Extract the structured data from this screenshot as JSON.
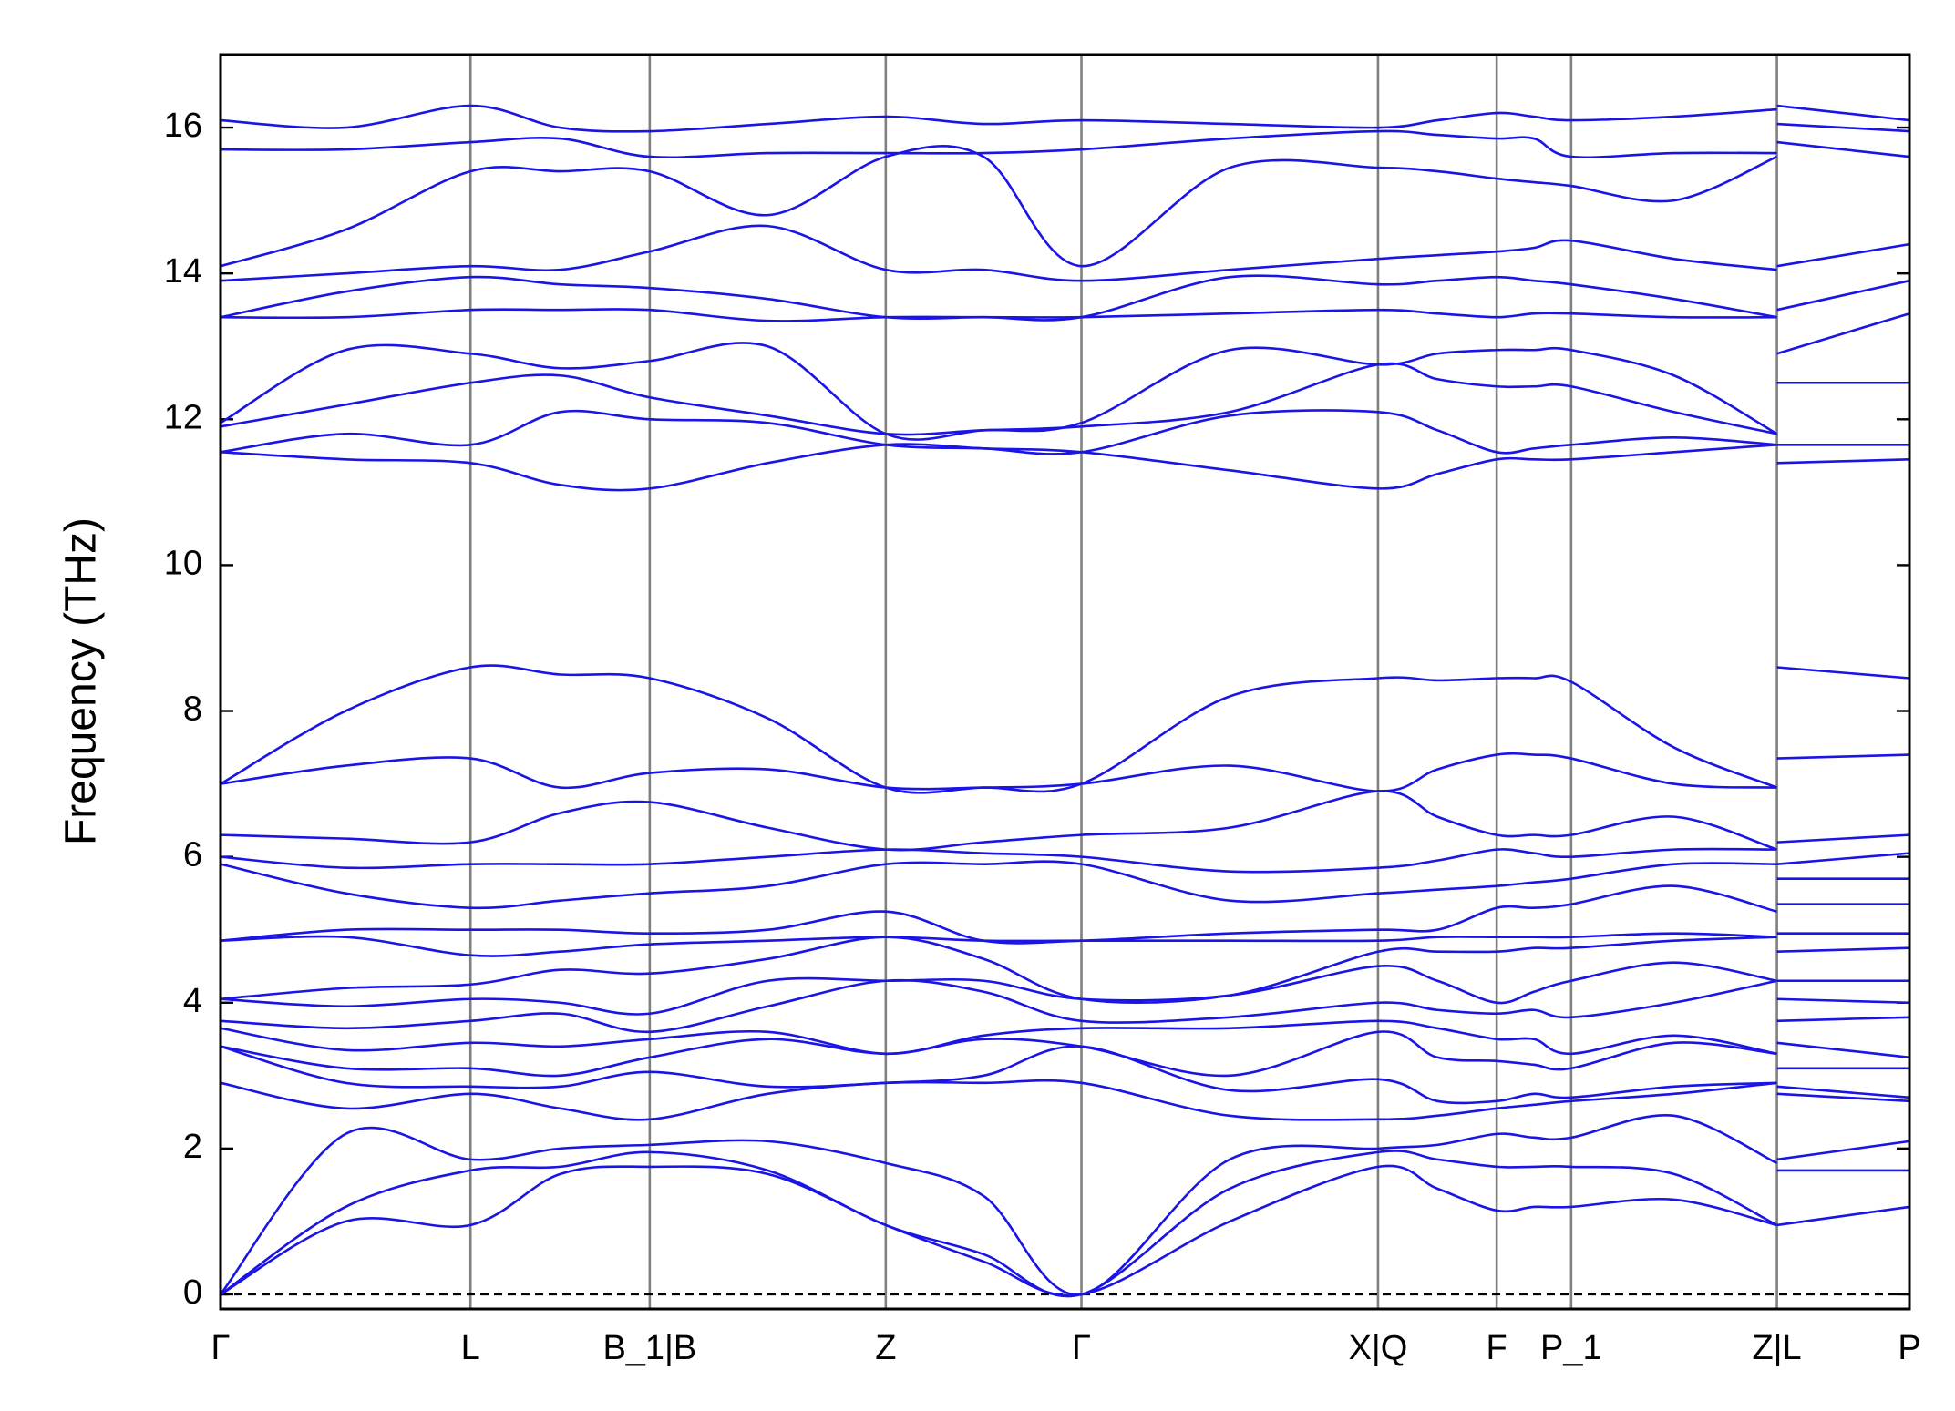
{
  "chart_data": {
    "type": "line",
    "ylabel": "Frequency (THz)",
    "color": "#1a14e6",
    "ylim": [
      -0.2,
      17
    ],
    "yticks": [
      0,
      2,
      4,
      6,
      8,
      10,
      12,
      14,
      16
    ],
    "xlim": [
      0,
      13.38
    ],
    "xticks": [
      {
        "value": 0,
        "label": "Γ"
      },
      {
        "value": 1.98,
        "label": "L"
      },
      {
        "value": 3.4,
        "label": "B_1|B"
      },
      {
        "value": 5.27,
        "label": "Z"
      },
      {
        "value": 6.82,
        "label": "Γ"
      },
      {
        "value": 9.17,
        "label": "X|Q"
      },
      {
        "value": 10.11,
        "label": "F"
      },
      {
        "value": 10.7,
        "label": "P_1"
      },
      {
        "value": 12.33,
        "label": "Z|L"
      },
      {
        "value": 13.38,
        "label": "P"
      }
    ],
    "xgrid": true,
    "hline": 0,
    "x": [
      0,
      0.99,
      1.98,
      2.69,
      3.4,
      4.335,
      5.27,
      6.045,
      6.82,
      7.995,
      9.17,
      9.64,
      10.11,
      10.405,
      10.7,
      11.515,
      12.33,
      12.33,
      12.33,
      13.38
    ],
    "series": [
      {
        "values": [
          0,
          1.0,
          0.95,
          1.65,
          1.75,
          1.65,
          0.95,
          0.45,
          0,
          1.0,
          1.75,
          1.45,
          1.15,
          1.2,
          1.2,
          1.3,
          0.95,
          null,
          0.95,
          1.2
        ]
      },
      {
        "values": [
          0,
          1.2,
          1.7,
          1.75,
          1.95,
          1.7,
          0.95,
          0.55,
          0,
          1.45,
          1.95,
          1.85,
          1.75,
          1.75,
          1.75,
          1.65,
          0.95,
          null,
          1.7,
          1.7
        ]
      },
      {
        "values": [
          0,
          2.2,
          1.85,
          2.0,
          2.05,
          2.1,
          1.8,
          1.35,
          0,
          1.85,
          2.0,
          2.05,
          2.2,
          2.15,
          2.15,
          2.45,
          1.8,
          null,
          1.85,
          2.1
        ]
      },
      {
        "values": [
          2.9,
          2.55,
          2.75,
          2.55,
          2.4,
          2.75,
          2.9,
          2.9,
          2.9,
          2.45,
          2.4,
          2.45,
          2.55,
          2.6,
          2.65,
          2.75,
          2.9,
          null,
          2.75,
          2.65
        ]
      },
      {
        "values": [
          3.4,
          2.9,
          2.85,
          2.85,
          3.05,
          2.85,
          2.9,
          3.0,
          3.4,
          2.8,
          2.95,
          2.65,
          2.65,
          2.75,
          2.7,
          2.85,
          2.9,
          null,
          2.85,
          2.7
        ]
      },
      {
        "values": [
          3.4,
          3.1,
          3.1,
          3.0,
          3.25,
          3.5,
          3.3,
          3.5,
          3.4,
          3.0,
          3.6,
          3.25,
          3.2,
          3.15,
          3.1,
          3.45,
          3.3,
          null,
          3.1,
          3.1
        ]
      },
      {
        "values": [
          3.65,
          3.35,
          3.45,
          3.4,
          3.5,
          3.6,
          3.3,
          3.55,
          3.65,
          3.65,
          3.75,
          3.65,
          3.5,
          3.5,
          3.3,
          3.55,
          3.3,
          null,
          3.45,
          3.25
        ]
      },
      {
        "values": [
          3.75,
          3.65,
          3.75,
          3.85,
          3.6,
          3.95,
          4.3,
          4.15,
          3.75,
          3.8,
          4.0,
          3.9,
          3.85,
          3.9,
          3.8,
          4.0,
          4.3,
          null,
          3.75,
          3.8
        ]
      },
      {
        "values": [
          4.05,
          3.95,
          4.05,
          4.0,
          3.85,
          4.3,
          4.3,
          4.3,
          4.05,
          4.1,
          4.5,
          4.3,
          4.0,
          4.15,
          4.3,
          4.55,
          4.3,
          null,
          4.05,
          4.0
        ]
      },
      {
        "values": [
          4.05,
          4.2,
          4.25,
          4.45,
          4.4,
          4.6,
          4.9,
          4.6,
          4.05,
          4.1,
          4.7,
          4.7,
          4.7,
          4.75,
          4.75,
          4.85,
          4.9,
          null,
          4.3,
          4.3
        ]
      },
      {
        "values": [
          4.85,
          4.9,
          4.65,
          4.7,
          4.8,
          4.85,
          4.9,
          4.85,
          4.85,
          4.85,
          4.85,
          4.9,
          4.9,
          4.9,
          4.9,
          4.95,
          4.9,
          null,
          4.7,
          4.75
        ]
      },
      {
        "values": [
          4.85,
          5.0,
          5.0,
          5.0,
          4.95,
          5.0,
          5.25,
          4.85,
          4.85,
          4.95,
          5.0,
          5.0,
          5.3,
          5.3,
          5.35,
          5.6,
          5.25,
          null,
          4.95,
          4.95
        ]
      },
      {
        "values": [
          5.9,
          5.5,
          5.3,
          5.4,
          5.5,
          5.6,
          5.9,
          5.9,
          5.9,
          5.4,
          5.5,
          5.55,
          5.6,
          5.65,
          5.7,
          5.9,
          5.9,
          null,
          5.35,
          5.35
        ]
      },
      {
        "values": [
          6.0,
          5.85,
          5.9,
          5.9,
          5.9,
          6.0,
          6.1,
          6.05,
          6.0,
          5.8,
          5.85,
          5.95,
          6.1,
          6.05,
          6.0,
          6.1,
          6.1,
          null,
          5.7,
          5.7
        ]
      },
      {
        "values": [
          6.3,
          6.25,
          6.2,
          6.6,
          6.75,
          6.4,
          6.1,
          6.2,
          6.3,
          6.4,
          6.9,
          6.55,
          6.3,
          6.3,
          6.3,
          6.55,
          6.1,
          null,
          5.9,
          6.05
        ]
      },
      {
        "values": [
          7.0,
          7.25,
          7.35,
          6.95,
          7.15,
          7.2,
          6.95,
          6.95,
          7.0,
          7.25,
          6.9,
          7.2,
          7.4,
          7.4,
          7.35,
          7.0,
          6.95,
          null,
          6.2,
          6.3
        ]
      },
      {
        "values": [
          7.0,
          8.0,
          8.6,
          8.5,
          8.45,
          7.9,
          6.95,
          6.95,
          7.0,
          8.2,
          8.45,
          8.42,
          8.45,
          8.45,
          8.4,
          7.5,
          6.95,
          null,
          7.35,
          7.4
        ]
      },
      {
        "values": [
          11.55,
          11.45,
          11.4,
          11.1,
          11.05,
          11.4,
          11.65,
          11.6,
          11.55,
          11.3,
          11.05,
          11.25,
          11.45,
          11.45,
          11.45,
          11.55,
          11.65,
          null,
          8.6,
          8.45
        ]
      },
      {
        "values": [
          11.55,
          11.8,
          11.65,
          12.1,
          12.0,
          11.95,
          11.65,
          11.6,
          11.55,
          12.05,
          12.1,
          11.85,
          11.55,
          11.6,
          11.65,
          11.75,
          11.65,
          null,
          11.4,
          11.45
        ]
      },
      {
        "values": [
          11.9,
          12.2,
          12.5,
          12.6,
          12.3,
          12.05,
          11.8,
          11.85,
          11.9,
          12.1,
          12.75,
          12.55,
          12.45,
          12.45,
          12.45,
          12.1,
          11.8,
          null,
          11.65,
          11.65
        ]
      },
      {
        "values": [
          11.95,
          12.95,
          12.9,
          12.7,
          12.8,
          13.0,
          11.8,
          11.85,
          11.95,
          12.95,
          12.75,
          12.9,
          12.95,
          12.95,
          12.95,
          12.6,
          11.8,
          null,
          12.5,
          12.5
        ]
      },
      {
        "values": [
          13.4,
          13.4,
          13.5,
          13.5,
          13.5,
          13.35,
          13.4,
          13.4,
          13.4,
          13.45,
          13.5,
          13.45,
          13.4,
          13.45,
          13.45,
          13.4,
          13.4,
          null,
          12.9,
          13.45
        ]
      },
      {
        "values": [
          13.4,
          13.75,
          13.95,
          13.85,
          13.8,
          13.65,
          13.4,
          13.4,
          13.4,
          13.95,
          13.85,
          13.9,
          13.95,
          13.9,
          13.85,
          13.65,
          13.4,
          null,
          13.5,
          13.9
        ]
      },
      {
        "values": [
          13.9,
          14.0,
          14.1,
          14.05,
          14.3,
          14.65,
          14.05,
          14.05,
          13.9,
          14.05,
          14.2,
          14.25,
          14.3,
          14.35,
          14.45,
          14.2,
          14.05,
          null,
          14.1,
          14.4
        ]
      },
      {
        "values": [
          14.1,
          14.6,
          15.4,
          15.4,
          15.4,
          14.8,
          15.6,
          15.6,
          14.1,
          15.45,
          15.45,
          15.4,
          15.3,
          15.25,
          15.2,
          15.0,
          15.6,
          null,
          15.8,
          15.6
        ]
      },
      {
        "values": [
          15.7,
          15.7,
          15.8,
          15.85,
          15.6,
          15.65,
          15.65,
          15.65,
          15.7,
          15.85,
          15.95,
          15.9,
          15.85,
          15.85,
          15.6,
          15.65,
          15.65,
          null,
          16.05,
          15.95
        ]
      },
      {
        "values": [
          16.1,
          16.0,
          16.3,
          16.0,
          15.95,
          16.05,
          16.15,
          16.05,
          16.1,
          16.05,
          16.0,
          16.1,
          16.2,
          16.15,
          16.1,
          16.15,
          16.25,
          null,
          16.3,
          16.1
        ]
      }
    ]
  }
}
